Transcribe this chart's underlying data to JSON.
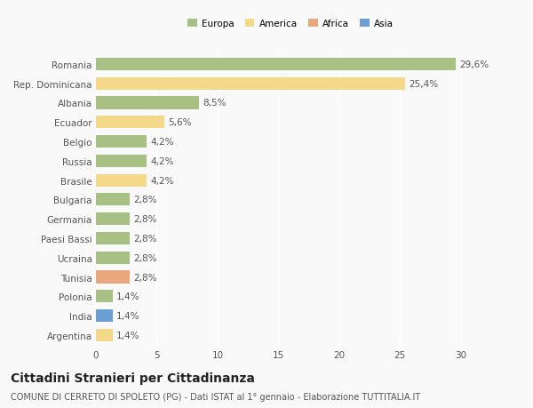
{
  "countries": [
    "Romania",
    "Rep. Dominicana",
    "Albania",
    "Ecuador",
    "Belgio",
    "Russia",
    "Brasile",
    "Bulgaria",
    "Germania",
    "Paesi Bassi",
    "Ucraina",
    "Tunisia",
    "Polonia",
    "India",
    "Argentina"
  ],
  "values": [
    29.6,
    25.4,
    8.5,
    5.6,
    4.2,
    4.2,
    4.2,
    2.8,
    2.8,
    2.8,
    2.8,
    2.8,
    1.4,
    1.4,
    1.4
  ],
  "categories": [
    "Europa",
    "America",
    "Europa",
    "America",
    "Europa",
    "Europa",
    "America",
    "Europa",
    "Europa",
    "Europa",
    "Europa",
    "Africa",
    "Europa",
    "Asia",
    "America"
  ],
  "colors": {
    "Europa": "#a8c084",
    "America": "#f5d98b",
    "Africa": "#e8a87c",
    "Asia": "#6b9fd4"
  },
  "legend_labels": [
    "Europa",
    "America",
    "Africa",
    "Asia"
  ],
  "legend_colors": [
    "#a8c084",
    "#f5d98b",
    "#e8a87c",
    "#6b9fd4"
  ],
  "title": "Cittadini Stranieri per Cittadinanza",
  "subtitle": "COMUNE DI CERRETO DI SPOLETO (PG) - Dati ISTAT al 1° gennaio - Elaborazione TUTTITALIA.IT",
  "xlim": [
    0,
    32
  ],
  "xticks": [
    0,
    5,
    10,
    15,
    20,
    25,
    30
  ],
  "background_color": "#f9f9f9",
  "bar_height": 0.65,
  "label_fontsize": 7.5,
  "tick_fontsize": 7.5,
  "title_fontsize": 10,
  "subtitle_fontsize": 7
}
